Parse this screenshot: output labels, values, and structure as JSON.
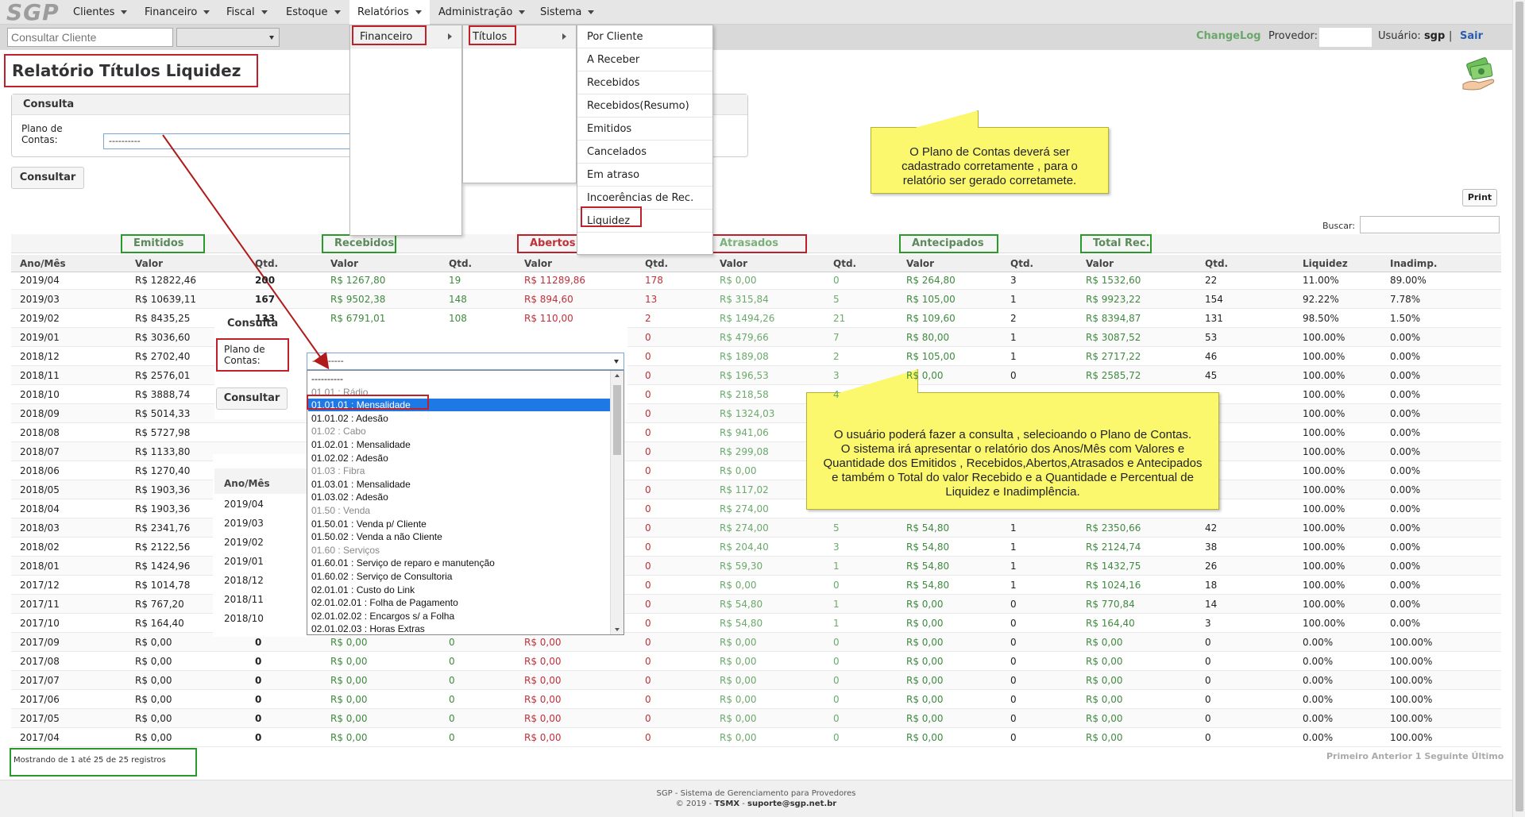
{
  "nav": {
    "logo": "SGP",
    "items": [
      {
        "label": "Clientes"
      },
      {
        "label": "Financeiro"
      },
      {
        "label": "Fiscal"
      },
      {
        "label": "Estoque"
      },
      {
        "label": "Relatórios"
      },
      {
        "label": "Administração"
      },
      {
        "label": "Sistema"
      }
    ]
  },
  "subbar": {
    "search_placeholder": "Consultar Cliente",
    "changelog": "ChangeLog",
    "provedor_label": "Provedor:",
    "usuario_label": "Usuário:",
    "usuario_name": "sgp",
    "separator": "|",
    "sair": "Sair"
  },
  "menus": {
    "level1": [
      {
        "label": "Financeiro"
      }
    ],
    "level2": [
      {
        "label": "Títulos"
      }
    ],
    "level3": [
      {
        "label": "Por Cliente"
      },
      {
        "label": "A Receber"
      },
      {
        "label": "Recebidos"
      },
      {
        "label": "Recebidos(Resumo)"
      },
      {
        "label": "Emitidos"
      },
      {
        "label": "Cancelados"
      },
      {
        "label": "Em atraso"
      },
      {
        "label": "Incoerências de Rec."
      },
      {
        "label": "Liquidez"
      }
    ]
  },
  "page": {
    "title": "Relatório Títulos Liquidez",
    "consulta_header": "Consulta",
    "plano_label": "Plano de Contas:",
    "plano_value": "----------",
    "consultar": "Consultar",
    "print": "Print",
    "buscar": "Buscar:",
    "records_info": "Mostrando de 1 até 25 de 25 registros",
    "pager": "Primeiro Anterior  1  Seguinte Último"
  },
  "notes": {
    "note1": "O Plano de Contas deverá ser cadastrado corretamente , para o relatório ser gerado corretamete.",
    "note2_lines": [
      "O usuário poderá fazer a consulta , selecioando o Plano de Contas.",
      "O sistema irá apresentar o relatório dos Anos/Mês com Valores e",
      "Quantidade dos Emitidos , Recebidos,Abertos,Atrasados e Antecipados",
      "e também o Total do valor Recebido  e a Quantidade e Percentual de",
      "Liquidez e Inadimplência."
    ]
  },
  "table": {
    "groups": [
      "Emitidos",
      "Recebidos",
      "Abertos",
      "Atrasados",
      "Antecipados",
      "Total Rec."
    ],
    "columns": [
      "Ano/Mês",
      "Valor",
      "Qtd.",
      "Valor",
      "Qtd.",
      "Valor",
      "Qtd.",
      "Valor",
      "Qtd.",
      "Valor",
      "Qtd.",
      "Valor",
      "Qtd.",
      "Liquidez",
      "Inadimp."
    ],
    "rows": [
      [
        "2019/04",
        "R$ 12822,46",
        "200",
        "R$ 1267,80",
        "19",
        "R$ 11289,86",
        "178",
        "R$ 0,00",
        "0",
        "R$ 264,80",
        "3",
        "R$ 1532,60",
        "22",
        "11.00%",
        "89.00%"
      ],
      [
        "2019/03",
        "R$ 10639,11",
        "167",
        "R$ 9502,38",
        "148",
        "R$ 894,60",
        "13",
        "R$ 315,84",
        "5",
        "R$ 105,00",
        "1",
        "R$ 9923,22",
        "154",
        "92.22%",
        "7.78%"
      ],
      [
        "2019/02",
        "R$ 8435,25",
        "133",
        "R$ 6791,01",
        "108",
        "R$ 110,00",
        "2",
        "R$ 1494,26",
        "21",
        "R$ 109,60",
        "2",
        "R$ 8394,87",
        "131",
        "98.50%",
        "1.50%"
      ],
      [
        "2019/01",
        "R$ 3036,60",
        "",
        "",
        "",
        "",
        "0",
        "R$ 479,66",
        "7",
        "R$ 80,00",
        "1",
        "R$ 3087,52",
        "53",
        "100.00%",
        "0.00%"
      ],
      [
        "2018/12",
        "R$ 2702,40",
        "",
        "",
        "",
        "",
        "0",
        "R$ 189,08",
        "2",
        "R$ 105,00",
        "1",
        "R$ 2717,22",
        "46",
        "100.00%",
        "0.00%"
      ],
      [
        "2018/11",
        "R$ 2576,01",
        "",
        "",
        "",
        "",
        "0",
        "R$ 196,53",
        "3",
        "R$ 0,00",
        "0",
        "R$ 2585,72",
        "45",
        "100.00%",
        "0.00%"
      ],
      [
        "2018/10",
        "R$ 3888,74",
        "",
        "",
        "",
        "",
        "0",
        "R$ 218,58",
        "4",
        "",
        "",
        "",
        "",
        "100.00%",
        "0.00%"
      ],
      [
        "2018/09",
        "R$ 5014,33",
        "",
        "",
        "",
        "",
        "0",
        "R$ 1324,03",
        "",
        "",
        "",
        "",
        "",
        "100.00%",
        "0.00%"
      ],
      [
        "2018/08",
        "R$ 5727,98",
        "",
        "",
        "",
        "",
        "0",
        "R$ 941,06",
        "",
        "",
        "",
        "",
        "",
        "100.00%",
        "0.00%"
      ],
      [
        "2018/07",
        "R$ 1133,80",
        "",
        "",
        "",
        "",
        "0",
        "R$ 299,08",
        "",
        "",
        "",
        "",
        "",
        "100.00%",
        "0.00%"
      ],
      [
        "2018/06",
        "R$ 1270,40",
        "",
        "",
        "",
        "",
        "0",
        "R$ 0,00",
        "",
        "",
        "",
        "",
        "",
        "100.00%",
        "0.00%"
      ],
      [
        "2018/05",
        "R$ 1903,36",
        "",
        "",
        "",
        "",
        "0",
        "R$ 117,02",
        "",
        "",
        "",
        "",
        "",
        "100.00%",
        "0.00%"
      ],
      [
        "2018/04",
        "R$ 1903,36",
        "",
        "",
        "",
        "",
        "0",
        "R$ 274,00",
        "",
        "",
        "",
        "",
        "",
        "100.00%",
        "0.00%"
      ],
      [
        "2018/03",
        "R$ 2341,76",
        "",
        "",
        "",
        "",
        "0",
        "R$ 274,00",
        "5",
        "R$ 54,80",
        "1",
        "R$ 2350,66",
        "42",
        "100.00%",
        "0.00%"
      ],
      [
        "2018/02",
        "R$ 2122,56",
        "",
        "",
        "",
        "",
        "0",
        "R$ 204,40",
        "3",
        "R$ 54,80",
        "1",
        "R$ 2124,74",
        "38",
        "100.00%",
        "0.00%"
      ],
      [
        "2018/01",
        "R$ 1424,96",
        "",
        "",
        "",
        "",
        "0",
        "R$ 59,30",
        "1",
        "R$ 54,80",
        "1",
        "R$ 1432,75",
        "26",
        "100.00%",
        "0.00%"
      ],
      [
        "2017/12",
        "R$ 1014,78",
        "",
        "",
        "",
        "",
        "0",
        "R$ 0,00",
        "0",
        "R$ 54,80",
        "1",
        "R$ 1024,16",
        "18",
        "100.00%",
        "0.00%"
      ],
      [
        "2017/11",
        "R$ 767,20",
        "",
        "",
        "",
        "",
        "0",
        "R$ 54,80",
        "1",
        "R$ 0,00",
        "0",
        "R$ 770,84",
        "14",
        "100.00%",
        "0.00%"
      ],
      [
        "2017/10",
        "R$ 164,40",
        "",
        "",
        "",
        "",
        "0",
        "R$ 54,80",
        "1",
        "R$ 0,00",
        "0",
        "R$ 164,40",
        "3",
        "100.00%",
        "0.00%"
      ],
      [
        "2017/09",
        "R$ 0,00",
        "0",
        "R$ 0,00",
        "0",
        "R$ 0,00",
        "0",
        "R$ 0,00",
        "0",
        "R$ 0,00",
        "0",
        "R$ 0,00",
        "0",
        "0.00%",
        "100.00%"
      ],
      [
        "2017/08",
        "R$ 0,00",
        "0",
        "R$ 0,00",
        "0",
        "R$ 0,00",
        "0",
        "R$ 0,00",
        "0",
        "R$ 0,00",
        "0",
        "R$ 0,00",
        "0",
        "0.00%",
        "100.00%"
      ],
      [
        "2017/07",
        "R$ 0,00",
        "0",
        "R$ 0,00",
        "0",
        "R$ 0,00",
        "0",
        "R$ 0,00",
        "0",
        "R$ 0,00",
        "0",
        "R$ 0,00",
        "0",
        "0.00%",
        "100.00%"
      ],
      [
        "2017/06",
        "R$ 0,00",
        "0",
        "R$ 0,00",
        "0",
        "R$ 0,00",
        "0",
        "R$ 0,00",
        "0",
        "R$ 0,00",
        "0",
        "R$ 0,00",
        "0",
        "0.00%",
        "100.00%"
      ],
      [
        "2017/05",
        "R$ 0,00",
        "0",
        "R$ 0,00",
        "0",
        "R$ 0,00",
        "0",
        "R$ 0,00",
        "0",
        "R$ 0,00",
        "0",
        "R$ 0,00",
        "0",
        "0.00%",
        "100.00%"
      ],
      [
        "2017/04",
        "R$ 0,00",
        "0",
        "R$ 0,00",
        "0",
        "R$ 0,00",
        "0",
        "R$ 0,00",
        "0",
        "R$ 0,00",
        "0",
        "R$ 0,00",
        "0",
        "0.00%",
        "100.00%"
      ]
    ]
  },
  "inset": {
    "title": "Consulta",
    "plano_label": "Plano de Contas:",
    "consultar": "Consultar",
    "anomes": "Ano/Mês",
    "years": [
      "2019/04",
      "2019/03",
      "2019/02",
      "2019/01",
      "2018/12",
      "2018/11",
      "2018/10"
    ],
    "select_value": "----------",
    "options": [
      {
        "label": "----------",
        "group": false
      },
      {
        "label": "01.01 : Rádio",
        "group": true
      },
      {
        "label": "01.01.01 : Mensalidade",
        "group": false,
        "selected": true
      },
      {
        "label": "01.01.02 : Adesão",
        "group": false
      },
      {
        "label": "01.02 : Cabo",
        "group": true
      },
      {
        "label": "01.02.01 : Mensalidade",
        "group": false
      },
      {
        "label": "01.02.02 : Adesão",
        "group": false
      },
      {
        "label": "01.03 : Fibra",
        "group": true
      },
      {
        "label": "01.03.01 : Mensalidade",
        "group": false
      },
      {
        "label": "01.03.02 : Adesão",
        "group": false
      },
      {
        "label": "01.50 : Venda",
        "group": true
      },
      {
        "label": "01.50.01 : Venda p/ Cliente",
        "group": false
      },
      {
        "label": "01.50.02 : Venda a não Cliente",
        "group": false
      },
      {
        "label": "01.60 : Serviços",
        "group": true
      },
      {
        "label": "01.60.01 : Serviço de reparo e manutenção",
        "group": false
      },
      {
        "label": "01.60.02 : Serviço de Consultoria",
        "group": false
      },
      {
        "label": "02.01.01 : Custo do Link",
        "group": false
      },
      {
        "label": "02.01.02.01 : Folha de Pagamento",
        "group": false
      },
      {
        "label": "02.01.02.02 : Encargos s/ a Folha",
        "group": false
      },
      {
        "label": "02.01.02.03 : Horas Extras",
        "group": false
      }
    ]
  },
  "footer": {
    "line1": "SGP - Sistema de Gerenciamento para Provedores",
    "line2_prefix": "© 2019 - ",
    "company": "TSMX",
    "line2_mid": " - ",
    "email": "suporte@sgp.net.br"
  },
  "colors": {
    "accent_red": "#c0202a",
    "accent_green": "#2a9a2a",
    "link_blue": "#2a5db0",
    "note_yellow": "#fbf86d"
  }
}
